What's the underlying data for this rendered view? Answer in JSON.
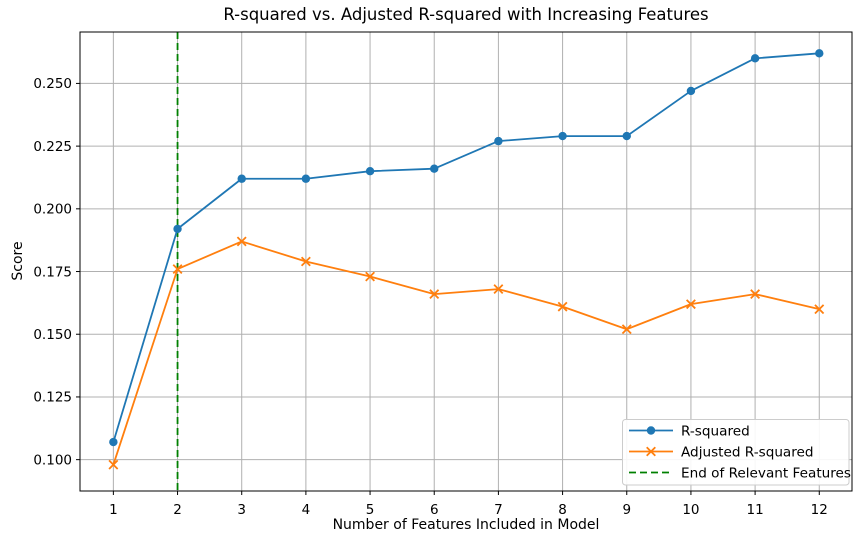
{
  "chart_data": {
    "type": "line",
    "title": "R-squared vs. Adjusted R-squared with Increasing Features",
    "xlabel": "Number of Features Included in Model",
    "ylabel": "Score",
    "x": [
      1,
      2,
      3,
      4,
      5,
      6,
      7,
      8,
      9,
      10,
      11,
      12
    ],
    "series": [
      {
        "name": "R-squared",
        "color": "#1f77b4",
        "marker": "circle",
        "values": [
          0.107,
          0.192,
          0.212,
          0.212,
          0.215,
          0.216,
          0.227,
          0.229,
          0.229,
          0.247,
          0.26,
          0.262
        ]
      },
      {
        "name": "Adjusted R-squared",
        "color": "#ff7f0e",
        "marker": "x",
        "values": [
          0.098,
          0.176,
          0.187,
          0.179,
          0.173,
          0.166,
          0.168,
          0.161,
          0.152,
          0.162,
          0.166,
          0.16
        ]
      }
    ],
    "vline": {
      "label": "End of Relevant Features",
      "x": 2,
      "color": "#008000",
      "style": "dashed"
    },
    "xtick_labels": [
      "1",
      "2",
      "3",
      "4",
      "5",
      "6",
      "7",
      "8",
      "9",
      "10",
      "11",
      "12"
    ],
    "xtick_values": [
      1,
      2,
      3,
      4,
      5,
      6,
      7,
      8,
      9,
      10,
      11,
      12
    ],
    "ytick_labels": [
      "0.100",
      "0.125",
      "0.150",
      "0.175",
      "0.200",
      "0.225",
      "0.250"
    ],
    "ytick_values": [
      0.1,
      0.125,
      0.15,
      0.175,
      0.2,
      0.225,
      0.25
    ],
    "xlim": [
      0.48,
      12.51
    ],
    "ylim": [
      0.0875,
      0.2705
    ],
    "grid": true,
    "grid_color": "#b0b0b0",
    "legend_position": "lower right"
  }
}
